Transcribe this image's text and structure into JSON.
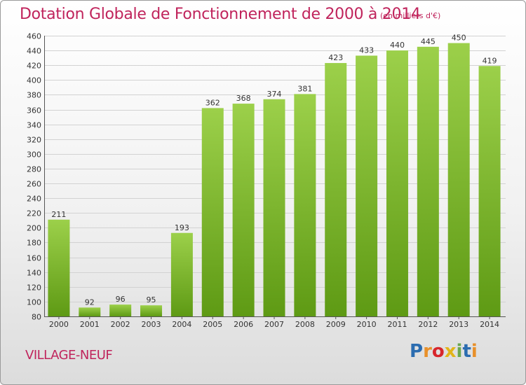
{
  "title": "Dotation Globale de Fonctionnement de 2000 à 2014",
  "subtitle": "(en milliers d'€)",
  "commune": "VILLAGE-NEUF",
  "logo": {
    "text": "Proxiti",
    "colors": [
      "#2b6cb0",
      "#e8902a",
      "#d7262c",
      "#e2b419",
      "#6aa84f",
      "#2b6cb0",
      "#e8902a"
    ]
  },
  "colors": {
    "accent": "#c0245c",
    "bar_top": "#9cd04a",
    "bar_bottom": "#5e9a14"
  },
  "chart_data": {
    "type": "bar",
    "categories": [
      "2000",
      "2001",
      "2002",
      "2003",
      "2004",
      "2005",
      "2006",
      "2007",
      "2008",
      "2009",
      "2010",
      "2011",
      "2012",
      "2013",
      "2014"
    ],
    "values": [
      211,
      92,
      96,
      95,
      193,
      362,
      368,
      374,
      381,
      423,
      433,
      440,
      445,
      450,
      419
    ],
    "ylim": [
      80,
      460
    ],
    "yticks": [
      80,
      100,
      120,
      140,
      160,
      180,
      200,
      220,
      240,
      260,
      280,
      300,
      320,
      340,
      360,
      380,
      400,
      420,
      440,
      460
    ],
    "grid": true,
    "legend": "none"
  }
}
